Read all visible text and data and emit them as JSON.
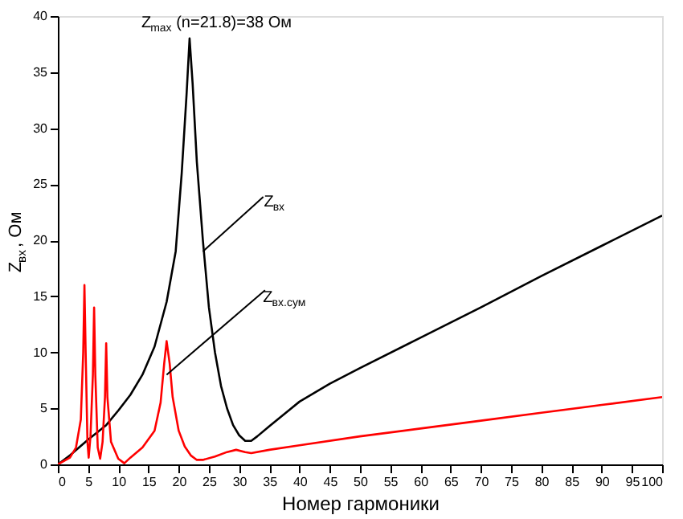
{
  "chart_data": {
    "type": "line",
    "xlabel": "Номер гармоники",
    "ylabel": "Z$_{вх}$, Ом",
    "xlim": [
      0,
      100
    ],
    "xticks": [
      0,
      5,
      10,
      15,
      20,
      25,
      30,
      35,
      40,
      45,
      50,
      55,
      60,
      65,
      70,
      75,
      80,
      85,
      90,
      95,
      100
    ],
    "ylim": [
      0,
      40
    ],
    "yticks": [
      0,
      5,
      10,
      15,
      20,
      25,
      30,
      35,
      40
    ],
    "grid": false,
    "marker": "none",
    "line_style": "solid",
    "series": [
      {
        "color": "#000000",
        "x": [
          0,
          2,
          5,
          8,
          10,
          12,
          14,
          16,
          18,
          19.5,
          20.5,
          21.3,
          21.8,
          22.3,
          23,
          24,
          25,
          26,
          27,
          28,
          29,
          30,
          31,
          32,
          33,
          35,
          40,
          45,
          50,
          60,
          70,
          80,
          90,
          100
        ],
        "values": [
          0,
          0.8,
          2.2,
          3.5,
          4.8,
          6.2,
          8,
          10.5,
          14.5,
          19,
          26,
          33,
          38,
          34,
          27,
          20,
          14,
          10,
          7,
          5,
          3.5,
          2.6,
          2.1,
          2.1,
          2.5,
          3.4,
          5.6,
          7.2,
          8.6,
          11.3,
          14,
          16.8,
          19.5,
          22.2
        ]
      },
      {
        "color": "#ff0000",
        "x": [
          0,
          2,
          3,
          3.8,
          4.2,
          4.4,
          4.6,
          4.9,
          5.1,
          5.4,
          5.8,
          6,
          6.2,
          6.6,
          7,
          7.4,
          7.8,
          8,
          8.2,
          8.8,
          10,
          11,
          12,
          14,
          16,
          17,
          17.6,
          18,
          18.5,
          19,
          20,
          21,
          22,
          23,
          24,
          26,
          28,
          29.5,
          31,
          32,
          35,
          40,
          50,
          60,
          70,
          80,
          90,
          100
        ],
        "values": [
          0,
          0.6,
          1.5,
          4,
          10,
          16,
          10,
          2,
          0.6,
          2.5,
          8,
          14,
          8,
          1.5,
          0.5,
          2,
          6,
          10.8,
          6,
          2,
          0.5,
          0.1,
          0.6,
          1.5,
          3,
          5.5,
          9,
          11,
          9,
          6,
          3,
          1.6,
          0.8,
          0.4,
          0.4,
          0.7,
          1.1,
          1.3,
          1.1,
          1,
          1.3,
          1.7,
          2.5,
          3.2,
          3.9,
          4.6,
          5.3,
          6
        ]
      }
    ],
    "annotations": [
      {
        "text": "Z$_{max}$ (n=21.8)=38 Ом",
        "x": 21.8,
        "y": 38
      },
      {
        "text": "Z$_{вх}$",
        "x": 24,
        "y": 19
      },
      {
        "text": "Z$_{вх.сум}$",
        "x": 18,
        "y": 8
      }
    ]
  }
}
